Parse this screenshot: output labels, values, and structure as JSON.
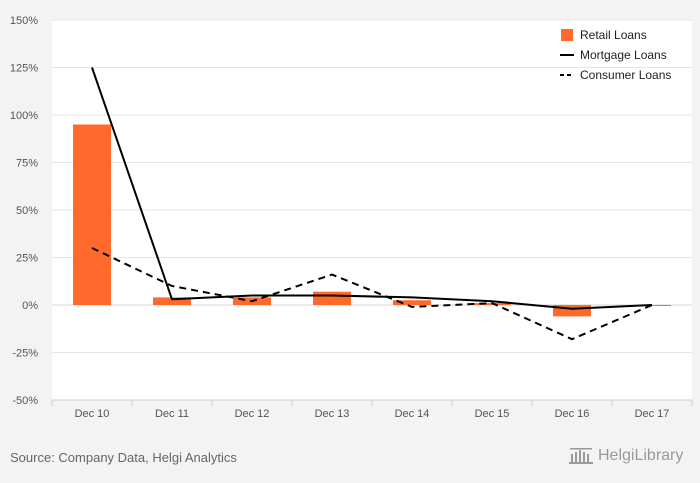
{
  "chart_data": {
    "type": "bar",
    "categories": [
      "Dec 10",
      "Dec 11",
      "Dec 12",
      "Dec 13",
      "Dec 14",
      "Dec 15",
      "Dec 16",
      "Dec 17"
    ],
    "y_ticks": [
      "150%",
      "125%",
      "100%",
      "75%",
      "50%",
      "25%",
      "0%",
      "-25%",
      "-50%"
    ],
    "ylim": [
      -50,
      150
    ],
    "unit": "%",
    "grid": true,
    "legend_position": "top-right",
    "series": [
      {
        "name": "Retail Loans",
        "kind": "bar",
        "color": "#ff6a2b",
        "values": [
          95,
          4,
          4,
          7,
          2.5,
          1,
          -6,
          -0.5
        ]
      },
      {
        "name": "Mortgage Loans",
        "kind": "line",
        "style": "solid",
        "color": "#000000",
        "values": [
          125,
          3,
          5,
          5,
          4,
          2,
          -2,
          0
        ]
      },
      {
        "name": "Consumer Loans",
        "kind": "line",
        "style": "dashed",
        "color": "#000000",
        "values": [
          30,
          10,
          2,
          16,
          -1,
          1,
          -18,
          0
        ]
      }
    ]
  },
  "footer": {
    "source": "Source: Company Data, Helgi Analytics",
    "logo_text": "HelgiLibrary"
  }
}
